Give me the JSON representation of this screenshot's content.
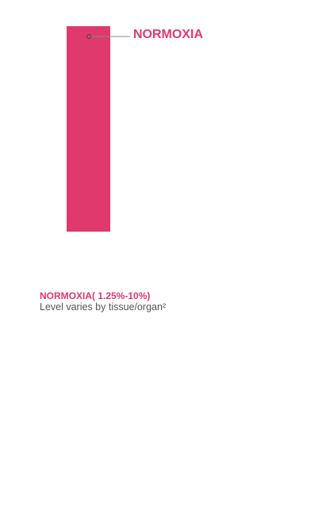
{
  "colors": {
    "accent": "#e0396e",
    "leader_line": "#888888",
    "note_text": "#555555"
  },
  "bar": {
    "label": "NORMOXIA"
  },
  "caption": {
    "title": "NORMOXIA( 1.25%-10%)",
    "note": "Level varies by tissue/organ²"
  }
}
